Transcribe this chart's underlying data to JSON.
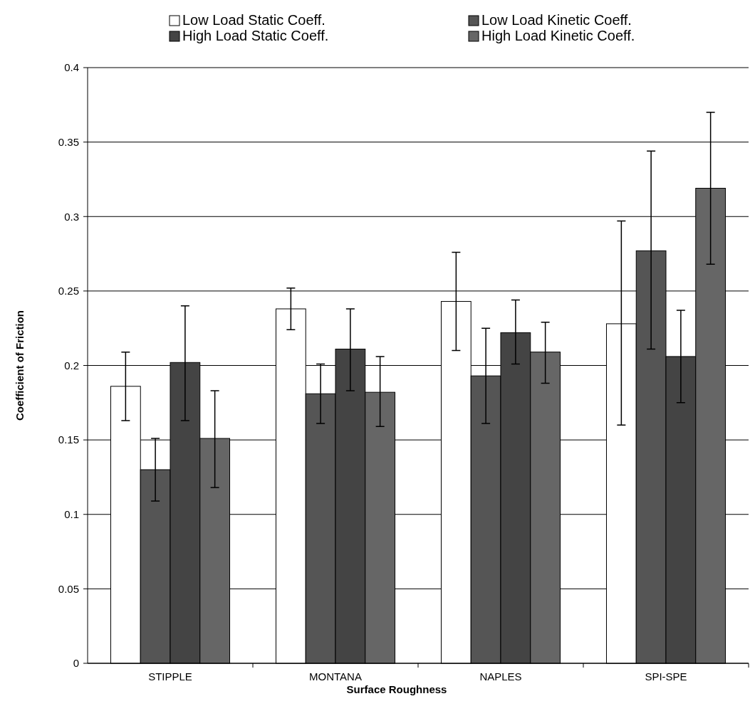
{
  "chart_data": {
    "type": "bar",
    "xlabel": "Surface Roughness",
    "ylabel": "Coefficient of Friction",
    "categories": [
      "STIPPLE",
      "MONTANA",
      "NAPLES",
      "SPI-SPE"
    ],
    "series": [
      {
        "name": "Low Load Static Coeff.",
        "color": "#ffffff",
        "values": [
          0.186,
          0.238,
          0.243,
          0.228
        ],
        "errors": [
          [
            0.163,
            0.209
          ],
          [
            0.224,
            0.252
          ],
          [
            0.21,
            0.276
          ],
          [
            0.16,
            0.297
          ]
        ]
      },
      {
        "name": "Low Load Kinetic Coeff.",
        "color": "#555555",
        "values": [
          0.13,
          0.181,
          0.193,
          0.277
        ],
        "errors": [
          [
            0.109,
            0.151
          ],
          [
            0.161,
            0.201
          ],
          [
            0.161,
            0.225
          ],
          [
            0.211,
            0.344
          ]
        ]
      },
      {
        "name": "High Load Static Coeff.",
        "color": "#444444",
        "values": [
          0.202,
          0.211,
          0.222,
          0.206
        ],
        "errors": [
          [
            0.163,
            0.24
          ],
          [
            0.183,
            0.238
          ],
          [
            0.201,
            0.244
          ],
          [
            0.175,
            0.237
          ]
        ]
      },
      {
        "name": "High Load Kinetic Coeff.",
        "color": "#666666",
        "values": [
          0.151,
          0.182,
          0.209,
          0.319
        ],
        "errors": [
          [
            0.118,
            0.183
          ],
          [
            0.159,
            0.206
          ],
          [
            0.188,
            0.229
          ],
          [
            0.268,
            0.37
          ]
        ]
      }
    ],
    "ylim": [
      0,
      0.4
    ],
    "yticks": [
      0,
      0.05,
      0.1,
      0.15,
      0.2,
      0.25,
      0.3,
      0.35,
      0.4
    ],
    "grid": "y",
    "legend": "top"
  }
}
